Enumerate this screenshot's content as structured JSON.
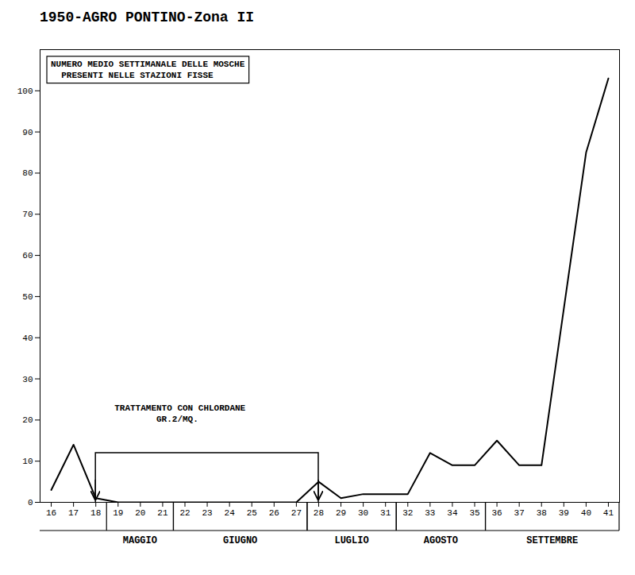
{
  "chart_data": {
    "type": "line",
    "title": "1950-AGRO PONTINO-Zona II",
    "x": [
      16,
      17,
      18,
      19,
      20,
      21,
      22,
      23,
      24,
      25,
      26,
      27,
      28,
      29,
      30,
      31,
      32,
      33,
      34,
      35,
      36,
      37,
      38,
      39,
      40,
      41
    ],
    "values": [
      3,
      14,
      1,
      0,
      0,
      0,
      0,
      0,
      0,
      0,
      0,
      0,
      5,
      1,
      2,
      2,
      2,
      12,
      9,
      9,
      15,
      9,
      9,
      47,
      85,
      103
    ],
    "color": "#000000",
    "xlim": [
      15.5,
      41.5
    ],
    "xticks": [
      16,
      17,
      18,
      19,
      20,
      21,
      22,
      23,
      24,
      25,
      26,
      27,
      28,
      29,
      30,
      31,
      32,
      33,
      34,
      35,
      36,
      37,
      38,
      39,
      40,
      41
    ],
    "ylim": [
      0,
      110
    ],
    "yticks": [
      0,
      10,
      20,
      30,
      40,
      50,
      60,
      70,
      80,
      90,
      100
    ],
    "grid": false,
    "annotations": [
      "NUMERO MEDIO SETTIMANALE DELLE MOSCHE\n  PRESENTI NELLE STAZIONI FISSE"
    ],
    "treatment": {
      "label": "TRATTAMENTO CON CHLORDANE\n        GR.2/MQ.",
      "start": 18,
      "end": 28
    },
    "months": [
      {
        "label": "MAGGIO",
        "start": 18.5,
        "end": 21.5
      },
      {
        "label": "GIUGNO",
        "start": 21.5,
        "end": 27.5
      },
      {
        "label": "LUGLIO",
        "start": 27.5,
        "end": 31.5
      },
      {
        "label": "AGOSTO",
        "start": 31.5,
        "end": 35.5
      },
      {
        "label": "SETTEMBRE",
        "start": 35.5,
        "end": 41.5
      }
    ]
  }
}
